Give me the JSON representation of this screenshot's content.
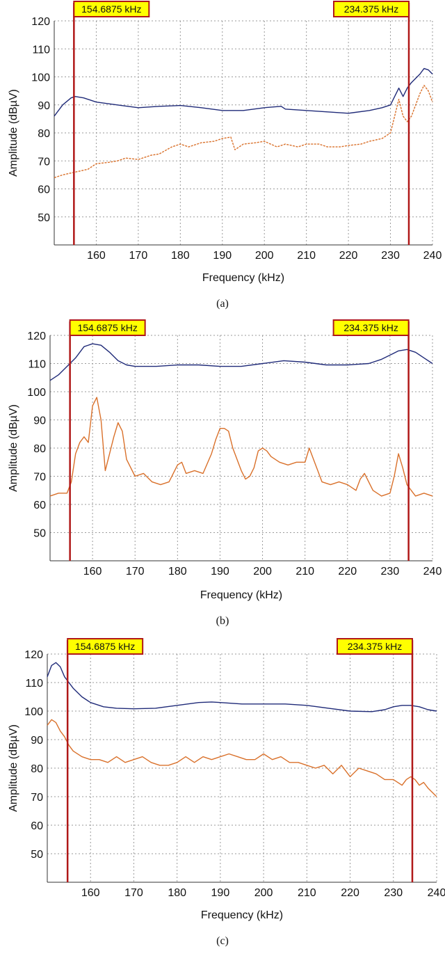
{
  "chart_data": [
    {
      "type": "line",
      "caption": "(a)",
      "xlabel": "Frequency (kHz)",
      "ylabel": "Amplitude (dBµV)",
      "xlim": [
        150,
        240
      ],
      "ylim": [
        40,
        120
      ],
      "xticks": [
        160,
        170,
        180,
        190,
        200,
        210,
        220,
        230,
        240
      ],
      "yticks": [
        50,
        60,
        70,
        80,
        90,
        100,
        110,
        120
      ],
      "grid": true,
      "markers": [
        {
          "x": 154.6875,
          "label": "154.6875 kHz"
        },
        {
          "x": 234.375,
          "label": "234.375 kHz"
        }
      ],
      "series": [
        {
          "color": "#1f2a78",
          "style": "solid",
          "x": [
            150,
            152,
            154,
            155,
            157,
            160,
            165,
            170,
            175,
            180,
            185,
            190,
            195,
            200,
            204,
            205,
            210,
            215,
            220,
            225,
            228,
            230,
            232,
            233,
            234,
            235,
            237,
            238,
            239,
            240
          ],
          "y": [
            86,
            90,
            92.5,
            93,
            92.5,
            91,
            90,
            89,
            89.5,
            89.8,
            89,
            88,
            88,
            89,
            89.5,
            88.5,
            88,
            87.5,
            87,
            88,
            89,
            90,
            96,
            93,
            96,
            98,
            101,
            103,
            102.5,
            101
          ]
        },
        {
          "color": "#d9702a",
          "style": "dotted",
          "x": [
            150,
            152,
            155,
            158,
            160,
            163,
            165,
            167,
            170,
            173,
            175,
            178,
            180,
            182,
            185,
            188,
            190,
            192,
            193,
            195,
            198,
            200,
            203,
            205,
            208,
            210,
            213,
            215,
            218,
            220,
            223,
            225,
            228,
            230,
            231,
            232,
            233,
            234,
            235,
            236,
            237,
            238,
            239,
            240
          ],
          "y": [
            64,
            65,
            66,
            67,
            69,
            69.5,
            70,
            71,
            70.5,
            72,
            72.5,
            75,
            76,
            75,
            76.5,
            77,
            78,
            78.5,
            74,
            76,
            76.5,
            77,
            75,
            76,
            75,
            76,
            76,
            75,
            75,
            75.5,
            76,
            77,
            78,
            80,
            86,
            92,
            86,
            84,
            86,
            90,
            94,
            97,
            95,
            91
          ]
        }
      ]
    },
    {
      "type": "line",
      "caption": "(b)",
      "xlabel": "Frequency (kHz)",
      "ylabel": "Amplitude (dBµV)",
      "xlim": [
        150,
        240
      ],
      "ylim": [
        40,
        120
      ],
      "xticks": [
        160,
        170,
        180,
        190,
        200,
        210,
        220,
        230,
        240
      ],
      "yticks": [
        50,
        60,
        70,
        80,
        90,
        100,
        110,
        120
      ],
      "grid": true,
      "markers": [
        {
          "x": 154.6875,
          "label": "154.6875 kHz"
        },
        {
          "x": 234.375,
          "label": "234.375 kHz"
        }
      ],
      "series": [
        {
          "color": "#1f2a78",
          "style": "solid",
          "x": [
            150,
            152,
            154,
            156,
            158,
            160,
            162,
            164,
            166,
            168,
            170,
            175,
            180,
            185,
            190,
            195,
            200,
            205,
            210,
            215,
            220,
            225,
            228,
            230,
            232,
            234,
            236,
            238,
            240
          ],
          "y": [
            104,
            106,
            109,
            112,
            116,
            117,
            116.5,
            114,
            111,
            109.5,
            109,
            109,
            109.5,
            109.5,
            109,
            109,
            110,
            111,
            110.5,
            109.5,
            109.5,
            110,
            111.5,
            113,
            114.5,
            115,
            114,
            112,
            110
          ]
        },
        {
          "color": "#d9702a",
          "style": "solid",
          "x": [
            150,
            152,
            154,
            155,
            156,
            157,
            158,
            159,
            160,
            161,
            162,
            163,
            164,
            165,
            166,
            167,
            168,
            170,
            172,
            174,
            176,
            178,
            180,
            181,
            182,
            184,
            186,
            188,
            189,
            190,
            191,
            192,
            193,
            195,
            196,
            197,
            198,
            199,
            200,
            201,
            202,
            204,
            206,
            208,
            210,
            211,
            212,
            213,
            214,
            216,
            218,
            220,
            222,
            223,
            224,
            226,
            228,
            230,
            231,
            232,
            233,
            234,
            235,
            236,
            238,
            240
          ],
          "y": [
            63,
            64,
            64,
            68,
            78,
            82,
            84,
            82,
            95,
            98,
            90,
            72,
            78,
            84,
            89,
            86,
            76,
            70,
            71,
            68,
            67,
            68,
            74,
            75,
            71,
            72,
            71,
            78,
            83,
            87,
            87,
            86,
            80,
            72,
            69,
            70,
            73,
            79,
            80,
            79,
            77,
            75,
            74,
            75,
            75,
            80,
            76,
            72,
            68,
            67,
            68,
            67,
            65,
            69,
            71,
            65,
            63,
            64,
            70,
            78,
            73,
            67,
            65,
            63,
            64,
            63
          ]
        }
      ]
    },
    {
      "type": "line",
      "caption": "(c)",
      "xlabel": "Frequency (kHz)",
      "ylabel": "Amplitude (dBµV)",
      "xlim": [
        150,
        240
      ],
      "ylim": [
        40,
        120
      ],
      "xticks": [
        160,
        170,
        180,
        190,
        200,
        210,
        220,
        230,
        240
      ],
      "yticks": [
        50,
        60,
        70,
        80,
        90,
        100,
        110,
        120
      ],
      "grid": true,
      "markers": [
        {
          "x": 154.6875,
          "label": "154.6875 kHz"
        },
        {
          "x": 234.375,
          "label": "234.375 kHz"
        }
      ],
      "series": [
        {
          "color": "#1f2a78",
          "style": "solid",
          "x": [
            150,
            151,
            152,
            153,
            154,
            156,
            158,
            160,
            163,
            166,
            170,
            175,
            180,
            185,
            188,
            190,
            195,
            200,
            205,
            210,
            215,
            220,
            225,
            228,
            230,
            232,
            234,
            236,
            238,
            240
          ],
          "y": [
            112,
            116,
            117,
            115.5,
            112,
            108,
            105,
            103,
            101.5,
            101,
            100.8,
            101,
            102,
            103,
            103.2,
            103,
            102.5,
            102.5,
            102.5,
            102,
            101,
            100,
            99.8,
            100.5,
            101.5,
            102,
            102,
            101.5,
            100.5,
            100
          ]
        },
        {
          "color": "#d9702a",
          "style": "solid",
          "x": [
            150,
            151,
            152,
            153,
            154,
            155,
            156,
            158,
            160,
            162,
            164,
            166,
            168,
            170,
            172,
            174,
            176,
            178,
            180,
            182,
            184,
            186,
            188,
            190,
            192,
            194,
            196,
            198,
            200,
            202,
            204,
            206,
            208,
            210,
            212,
            214,
            216,
            218,
            220,
            222,
            224,
            226,
            228,
            230,
            232,
            233,
            234,
            235,
            236,
            237,
            238,
            240
          ],
          "y": [
            95,
            97,
            96,
            93,
            91,
            88,
            86,
            84,
            83,
            83,
            82,
            84,
            82,
            83,
            84,
            82,
            81,
            81,
            82,
            84,
            82,
            84,
            83,
            84,
            85,
            84,
            83,
            83,
            85,
            83,
            84,
            82,
            82,
            81,
            80,
            81,
            78,
            81,
            77,
            80,
            79,
            78,
            76,
            76,
            74,
            76,
            77,
            76,
            74,
            75,
            73,
            70
          ]
        }
      ]
    }
  ]
}
